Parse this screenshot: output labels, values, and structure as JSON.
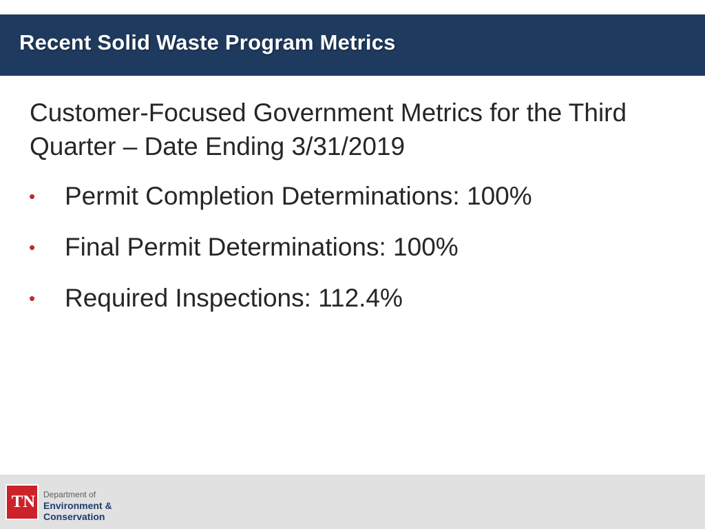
{
  "header": {
    "title": "Recent Solid Waste Program Metrics"
  },
  "content": {
    "subtitle": "Customer-Focused Government Metrics for the Third Quarter – Date Ending 3/31/2019",
    "bullet_char": "•",
    "bullets": [
      {
        "text": "Permit Completion Determinations:  100%"
      },
      {
        "text": "Final Permit Determinations:  100%"
      },
      {
        "text": "Required Inspections:  112.4%"
      }
    ]
  },
  "footer": {
    "logo": {
      "abbrev": "TN",
      "line1": "Department of",
      "line2": "Environment &",
      "line3": "Conservation"
    }
  },
  "colors": {
    "header_bg": "#1f3a5f",
    "bullet": "#c0282d",
    "footer_bg": "#e1e1e1",
    "logo_red": "#cc2229",
    "logo_navy": "#1f3a6e"
  }
}
